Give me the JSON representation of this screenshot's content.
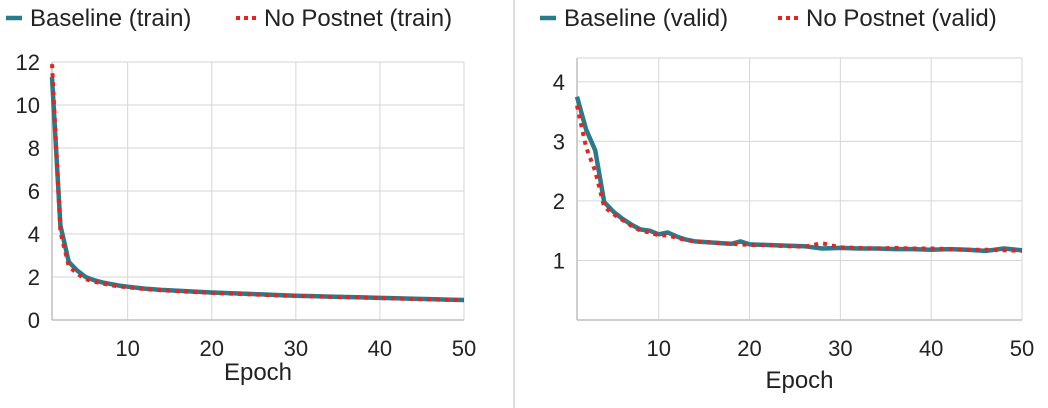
{
  "colors": {
    "baseline": "#2a7b8a",
    "no_postnet": "#e8231f",
    "grid": "#d6d6d6",
    "axis": "#bfbfbf",
    "divider": "#bdbdbd"
  },
  "chart_data": [
    {
      "type": "line",
      "xlabel": "Epoch",
      "ylabel": "",
      "xlim": [
        1,
        50
      ],
      "ylim": [
        0,
        12
      ],
      "xticks": [
        10,
        20,
        30,
        40,
        50
      ],
      "yticks": [
        0,
        2,
        4,
        6,
        8,
        10,
        12
      ],
      "grid": true,
      "legend_placement": "top",
      "series": [
        {
          "name": "Baseline (train)",
          "style": "solid",
          "color": "#2a7b8a",
          "x": [
            1,
            2,
            3,
            4,
            5,
            6,
            7,
            8,
            9,
            10,
            12,
            14,
            16,
            18,
            20,
            22,
            24,
            26,
            28,
            30,
            32,
            34,
            36,
            38,
            40,
            42,
            44,
            46,
            48,
            50
          ],
          "y": [
            11.3,
            4.4,
            2.7,
            2.3,
            2.0,
            1.85,
            1.75,
            1.67,
            1.6,
            1.55,
            1.46,
            1.4,
            1.36,
            1.32,
            1.28,
            1.25,
            1.22,
            1.19,
            1.16,
            1.13,
            1.11,
            1.09,
            1.07,
            1.05,
            1.03,
            1.01,
            0.99,
            0.97,
            0.95,
            0.93
          ]
        },
        {
          "name": "No Postnet (train)",
          "style": "dotted",
          "color": "#e8231f",
          "x": [
            1,
            2,
            3,
            4,
            5,
            6,
            7,
            8,
            9,
            10,
            12,
            14,
            16,
            18,
            20,
            22,
            24,
            26,
            28,
            30,
            32,
            34,
            36,
            38,
            40,
            42,
            44,
            46,
            48,
            50
          ],
          "y": [
            11.9,
            4.1,
            2.5,
            2.15,
            1.9,
            1.78,
            1.7,
            1.62,
            1.56,
            1.52,
            1.44,
            1.38,
            1.34,
            1.3,
            1.26,
            1.23,
            1.2,
            1.17,
            1.14,
            1.12,
            1.1,
            1.08,
            1.06,
            1.04,
            1.02,
            1.0,
            0.98,
            0.96,
            0.94,
            0.92
          ]
        }
      ]
    },
    {
      "type": "line",
      "xlabel": "Epoch",
      "ylabel": "",
      "xlim": [
        1,
        50
      ],
      "ylim": [
        0,
        4.4
      ],
      "xticks": [
        10,
        20,
        30,
        40,
        50
      ],
      "yticks": [
        1,
        2,
        3,
        4
      ],
      "grid": true,
      "legend_placement": "top",
      "series": [
        {
          "name": "Baseline (valid)",
          "style": "solid",
          "color": "#2a7b8a",
          "x": [
            1,
            2,
            3,
            4,
            5,
            6,
            7,
            8,
            9,
            10,
            11,
            12,
            13,
            14,
            15,
            16,
            17,
            18,
            19,
            20,
            22,
            24,
            26,
            28,
            30,
            32,
            34,
            36,
            38,
            40,
            42,
            44,
            46,
            47,
            48,
            50
          ],
          "y": [
            3.75,
            3.2,
            2.85,
            1.98,
            1.82,
            1.7,
            1.6,
            1.52,
            1.5,
            1.44,
            1.47,
            1.4,
            1.35,
            1.32,
            1.31,
            1.3,
            1.29,
            1.28,
            1.32,
            1.27,
            1.26,
            1.25,
            1.24,
            1.2,
            1.21,
            1.2,
            1.2,
            1.19,
            1.19,
            1.18,
            1.19,
            1.18,
            1.16,
            1.18,
            1.2,
            1.17
          ]
        },
        {
          "name": "No Postnet (valid)",
          "style": "dotted",
          "color": "#e8231f",
          "x": [
            1,
            2,
            3,
            4,
            5,
            6,
            7,
            8,
            9,
            10,
            11,
            12,
            13,
            14,
            15,
            16,
            17,
            18,
            19,
            20,
            22,
            24,
            26,
            28,
            30,
            32,
            34,
            36,
            38,
            40,
            42,
            44,
            46,
            48,
            50
          ],
          "y": [
            3.6,
            2.9,
            2.5,
            1.9,
            1.78,
            1.68,
            1.58,
            1.5,
            1.47,
            1.42,
            1.42,
            1.38,
            1.34,
            1.32,
            1.31,
            1.3,
            1.29,
            1.28,
            1.27,
            1.26,
            1.26,
            1.24,
            1.23,
            1.29,
            1.22,
            1.21,
            1.2,
            1.21,
            1.2,
            1.2,
            1.19,
            1.18,
            1.18,
            1.17,
            1.16
          ]
        }
      ]
    }
  ]
}
